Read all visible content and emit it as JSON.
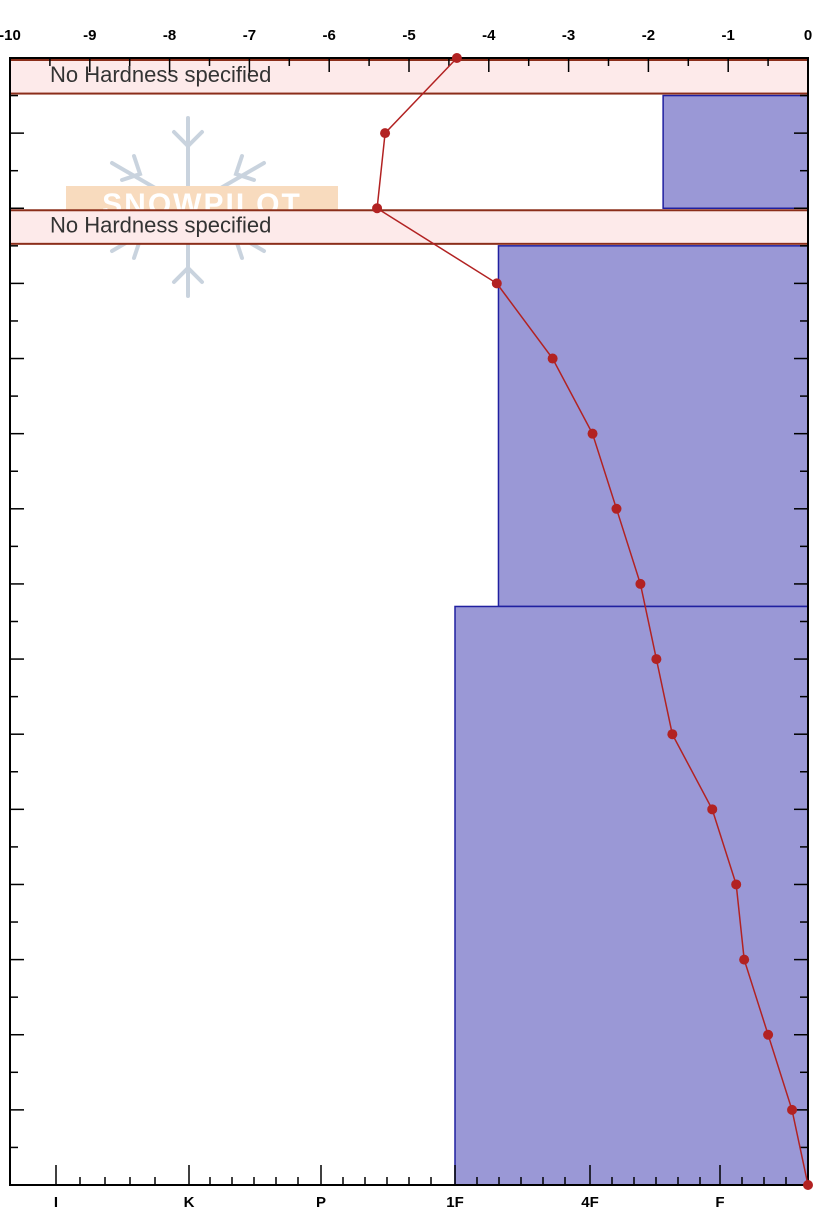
{
  "chart_data": {
    "type": "line",
    "temperature_axis": {
      "position": "top",
      "range": [
        -10,
        0
      ],
      "tick_labels": [
        "-10",
        "-9",
        "-8",
        "-7",
        "-6",
        "-5",
        "-4",
        "-3",
        "-2",
        "-1",
        "0"
      ]
    },
    "hardness_axis": {
      "position": "bottom",
      "tick_labels": [
        "I",
        "K",
        "P",
        "1F",
        "4F",
        "F"
      ]
    },
    "depth_axis": {
      "range": [
        0,
        150
      ],
      "inverted": true
    },
    "layers": [
      {
        "top": 0,
        "bottom": 5,
        "hardness": null,
        "label": "No Hardness specified"
      },
      {
        "top": 5,
        "bottom": 20,
        "hardness": 1.1
      },
      {
        "top": 20,
        "bottom": 25,
        "hardness": null,
        "label": "No Hardness specified"
      },
      {
        "top": 25,
        "bottom": 73,
        "hardness": 2.35
      },
      {
        "top": 73,
        "bottom": 150,
        "hardness": 2.68
      }
    ],
    "temperature_profile": {
      "depth": [
        0,
        10,
        20,
        30,
        40,
        50,
        60,
        70,
        80,
        90,
        100,
        110,
        120,
        130,
        140,
        150
      ],
      "temperature": [
        -4.4,
        -5.3,
        -5.4,
        -3.9,
        -3.2,
        -2.7,
        -2.4,
        -2.1,
        -1.9,
        -1.7,
        -1.2,
        -0.9,
        -0.8,
        -0.5,
        -0.2,
        0
      ],
      "color": "#b22222"
    },
    "colors": {
      "layer_fill": "#9a98d6",
      "layer_stroke": "#2020a0",
      "no_hardness_fill": "#fdeaea",
      "no_hardness_stroke": "#8b2e1a",
      "axis": "#000000"
    }
  },
  "watermark": {
    "text": "SNOWPILOT",
    "icon": "snowflake-icon"
  }
}
